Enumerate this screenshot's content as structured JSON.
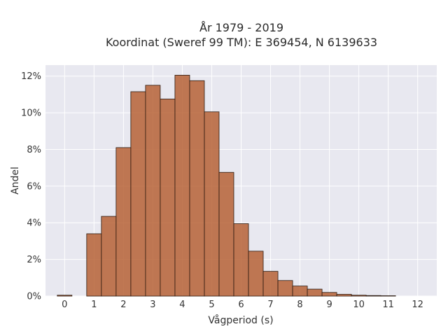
{
  "chart_data": {
    "type": "bar",
    "title_line1": "År 1979 - 2019",
    "title_line2": "Koordinat (Sweref 99 TM): E 369454, N 6139633",
    "xlabel": "Vågperiod (s)",
    "ylabel": "Andel",
    "xlim": [
      -0.65,
      12.65
    ],
    "ylim": [
      0,
      12.6
    ],
    "x_ticks": [
      0,
      1,
      2,
      3,
      4,
      5,
      6,
      7,
      8,
      9,
      10,
      11,
      12
    ],
    "y_ticks": [
      0,
      2,
      4,
      6,
      8,
      10,
      12
    ],
    "y_tick_labels": [
      "0%",
      "2%",
      "4%",
      "6%",
      "8%",
      "10%",
      "12%"
    ],
    "bin_width": 0.5,
    "bin_left_edges": [
      -0.25,
      0.25,
      0.75,
      1.25,
      1.75,
      2.25,
      2.75,
      3.25,
      3.75,
      4.25,
      4.75,
      5.25,
      5.75,
      6.25,
      6.75,
      7.25,
      7.75,
      8.25,
      8.75,
      9.25,
      9.75,
      10.25,
      10.75,
      11.25,
      11.75
    ],
    "values": [
      0.05,
      0,
      3.4,
      4.35,
      8.1,
      11.15,
      11.5,
      10.75,
      12.05,
      11.75,
      10.05,
      6.75,
      3.95,
      2.45,
      1.35,
      0.85,
      0.55,
      0.38,
      0.2,
      0.1,
      0.05,
      0.03,
      0.02,
      0,
      0
    ],
    "bar_color": "#b55d2e",
    "plot_background": "#e8e8f0",
    "grid": true,
    "legend": false
  }
}
